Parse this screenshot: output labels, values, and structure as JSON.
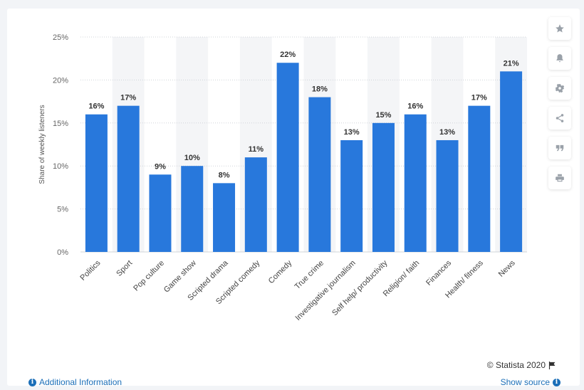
{
  "chart_data": {
    "type": "bar",
    "categories": [
      "Politics",
      "Sport",
      "Pop culture",
      "Game show",
      "Scripted drama",
      "Scripted comedy",
      "Comedy",
      "True crime",
      "Investigative journalism",
      "Self help/ productivity",
      "Religion/ faith",
      "Finances",
      "Health/ fitness",
      "News"
    ],
    "values": [
      16,
      17,
      9,
      10,
      8,
      11,
      22,
      18,
      13,
      15,
      16,
      13,
      17,
      21
    ],
    "value_labels": [
      "16%",
      "17%",
      "9%",
      "10%",
      "8%",
      "11%",
      "22%",
      "18%",
      "13%",
      "15%",
      "16%",
      "13%",
      "17%",
      "21%"
    ],
    "ylabel": "Share of weekly listeners",
    "ylim": [
      0,
      25
    ],
    "yticks": [
      0,
      5,
      10,
      15,
      20,
      25
    ],
    "ytick_labels": [
      "0%",
      "5%",
      "10%",
      "15%",
      "20%",
      "25%"
    ],
    "bar_color": "#2878dc",
    "grid": true
  },
  "toolbar": {
    "buttons": [
      {
        "name": "star-icon"
      },
      {
        "name": "bell-icon"
      },
      {
        "name": "gear-icon"
      },
      {
        "name": "share-icon"
      },
      {
        "name": "quote-icon"
      },
      {
        "name": "print-icon"
      }
    ]
  },
  "footer": {
    "copyright": "© Statista 2020",
    "additional_info": "Additional Information",
    "show_source": "Show source"
  }
}
